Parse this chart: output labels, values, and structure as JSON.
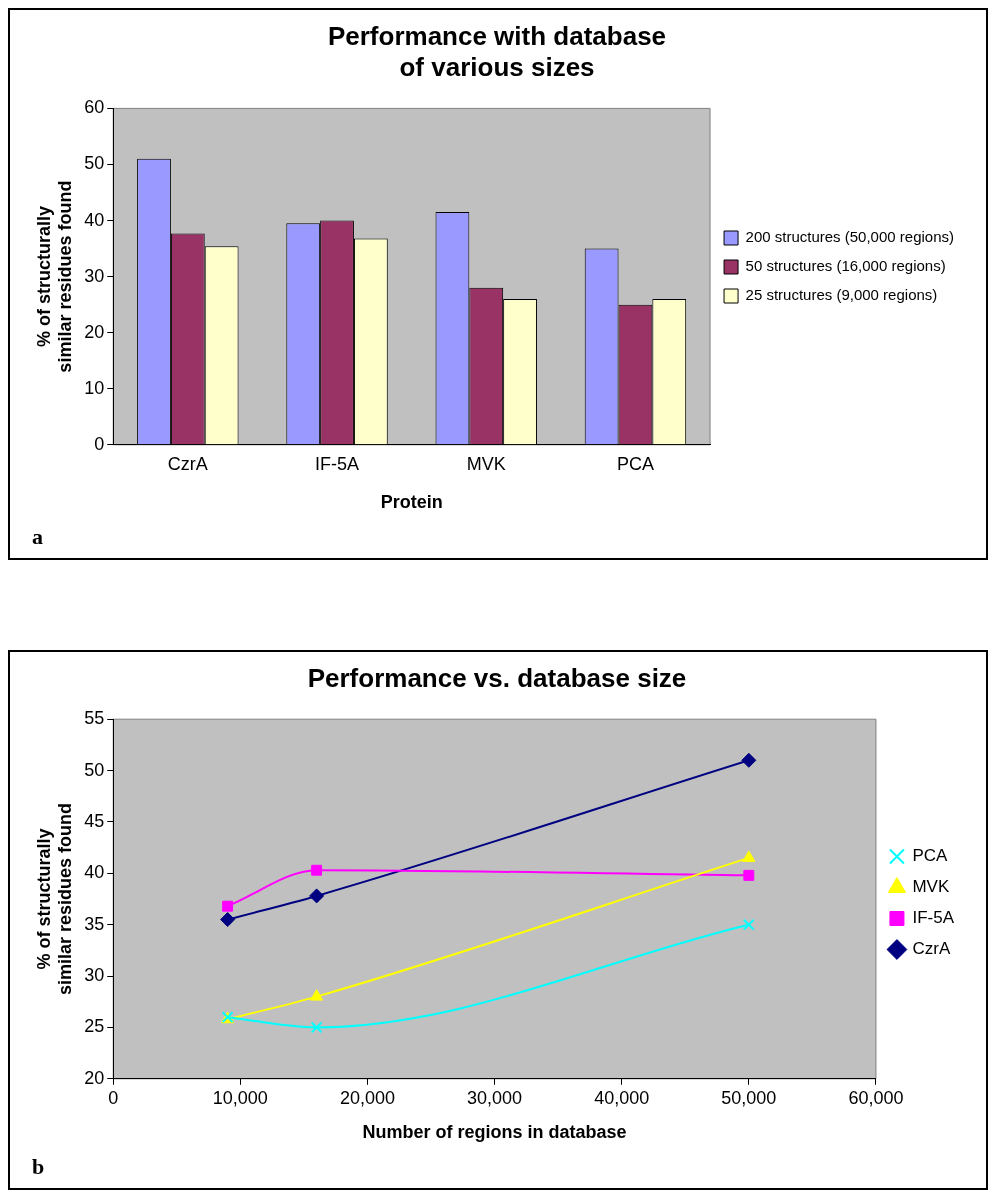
{
  "chart_data": [
    {
      "type": "bar",
      "title": "Performance with database of various sizes",
      "xlabel": "Protein",
      "ylabel": "% of structurally similar residues found",
      "categories": [
        "CzrA",
        "IF-5A",
        "MVK",
        "PCA"
      ],
      "series": [
        {
          "name": "200 structures (50,000 regions)",
          "color": "#9999ff",
          "values": [
            51,
            39.5,
            41.5,
            35
          ]
        },
        {
          "name": "50 structures (16,000 regions)",
          "color": "#993366",
          "values": [
            37.7,
            40,
            28,
            25
          ]
        },
        {
          "name": "25 structures (9,000 regions)",
          "color": "#ffffcc",
          "values": [
            35.4,
            36.8,
            26,
            26
          ]
        }
      ],
      "ylim": [
        0,
        60
      ],
      "yticks": [
        0,
        10,
        20,
        30,
        40,
        50,
        60
      ],
      "grid": false,
      "legend": "right",
      "annotations": [
        "a"
      ]
    },
    {
      "type": "line",
      "title": "Performance vs. database size",
      "xlabel": "Number of regions in database",
      "ylabel": "% of structurally similar residues found",
      "x": [
        9000,
        16000,
        50000
      ],
      "series": [
        {
          "name": "CzrA",
          "color": "#000080",
          "values": [
            35.5,
            37.8,
            51
          ],
          "marker": "diamond"
        },
        {
          "name": "IF-5A",
          "color": "#ff00ff",
          "values": [
            36.8,
            40.3,
            39.8
          ],
          "marker": "square"
        },
        {
          "name": "MVK",
          "color": "#ffff00",
          "values": [
            25.8,
            28,
            41.5
          ],
          "marker": "triangle"
        },
        {
          "name": "PCA",
          "color": "#00ffff",
          "values": [
            26,
            25,
            35
          ],
          "marker": "cross"
        }
      ],
      "xlim": [
        0,
        60000
      ],
      "xticks": [
        {
          "value": 0,
          "label": "0"
        },
        {
          "value": 10000,
          "label": "10,000"
        },
        {
          "value": 20000,
          "label": "20,000"
        },
        {
          "value": 30000,
          "label": "30,000"
        },
        {
          "value": 40000,
          "label": "40,000"
        },
        {
          "value": 50000,
          "label": "50,000"
        },
        {
          "value": 60000,
          "label": "60,000"
        }
      ],
      "ylim": [
        20,
        55
      ],
      "yticks": [
        20,
        25,
        30,
        35,
        40,
        45,
        50,
        55
      ],
      "grid": false,
      "legend": "right",
      "annotations": [
        "b"
      ]
    }
  ]
}
